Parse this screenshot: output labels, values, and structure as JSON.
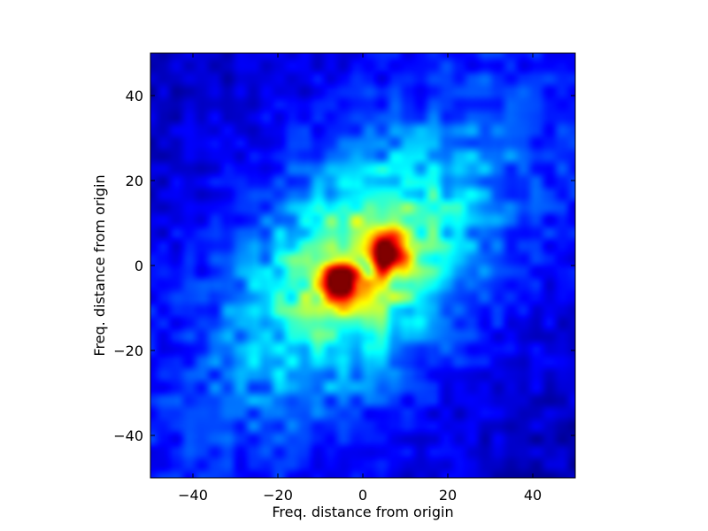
{
  "chart_data": {
    "type": "heatmap",
    "title": "",
    "xlabel": "Freq. distance from origin",
    "ylabel": "Freq. distance from origin",
    "xlim": [
      -50,
      50
    ],
    "ylim": [
      -50,
      50
    ],
    "x_ticks": [
      -40,
      -20,
      0,
      20,
      40
    ],
    "y_ticks": [
      -40,
      -20,
      0,
      20,
      40
    ],
    "x_tick_labels": [
      "−40",
      "−20",
      "0",
      "20",
      "40"
    ],
    "y_tick_labels": [
      "−40",
      "−20",
      "0",
      "20",
      "40"
    ],
    "colormap": "jet",
    "grid": false,
    "legend": "none",
    "features": [
      {
        "name": "peak-upper-right",
        "x": 6,
        "y": 3,
        "intensity": 0.98
      },
      {
        "name": "peak-lower-left",
        "x": -5,
        "y": -4,
        "intensity": 0.96
      },
      {
        "name": "diagonal-band",
        "direction": "bottom-left to top-right",
        "intensity": 0.35
      }
    ]
  },
  "colors": {
    "jet_low": "#00007f",
    "jet_mid": "#00ffff",
    "jet_high": "#7f0000"
  }
}
